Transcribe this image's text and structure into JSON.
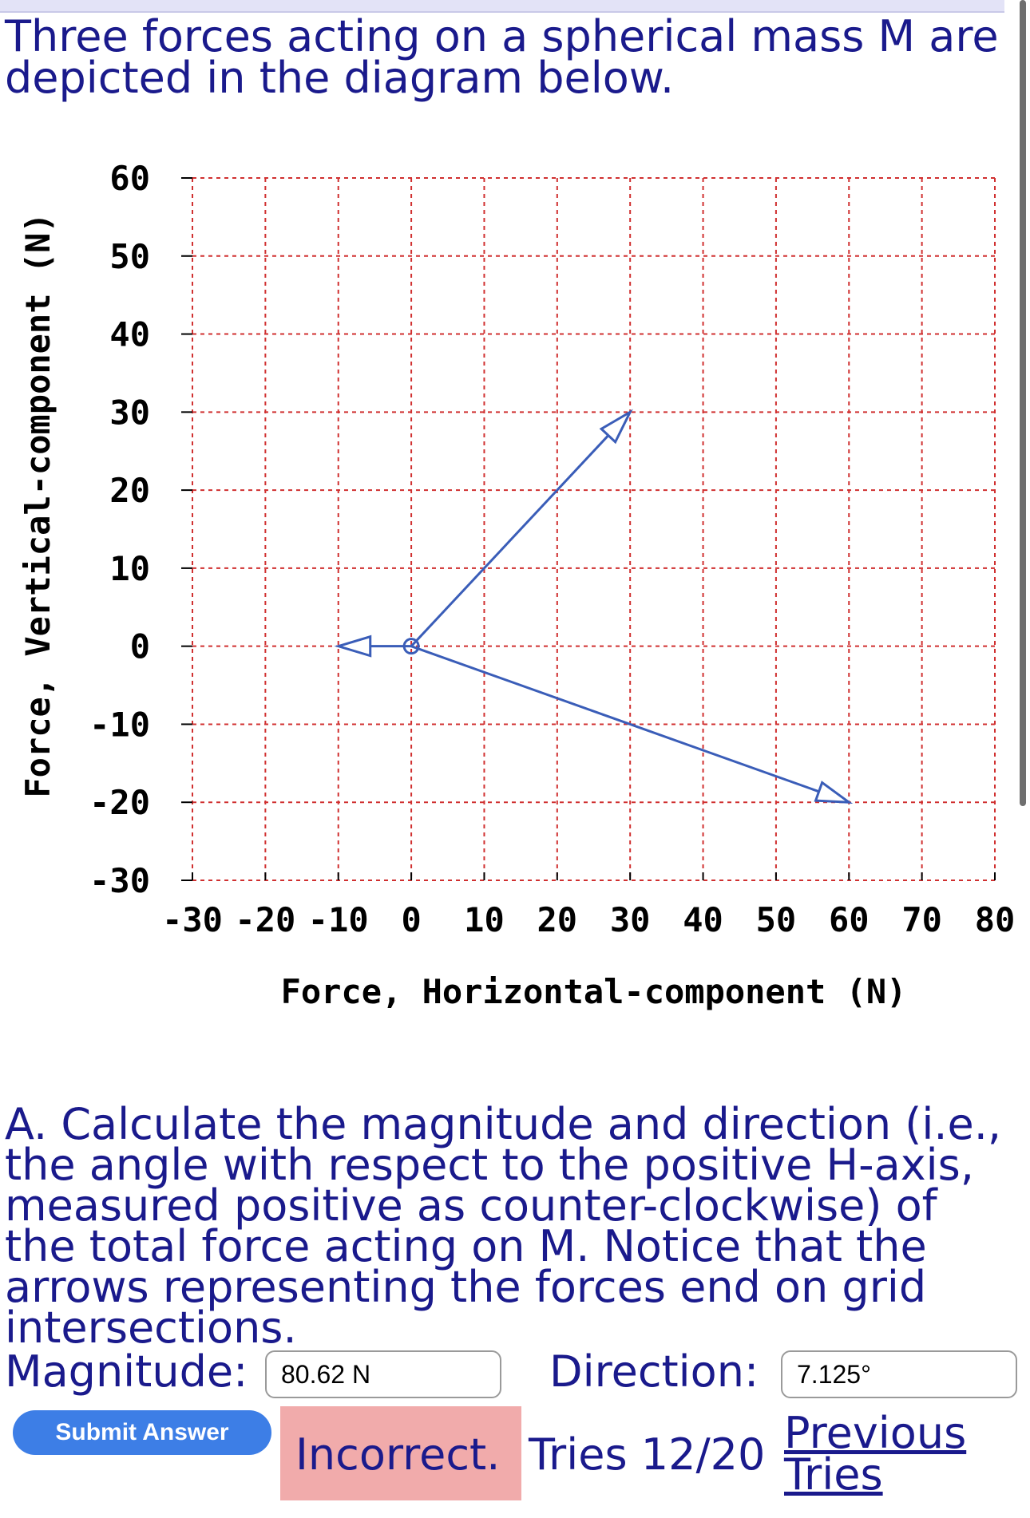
{
  "intro": "Three forces acting on a spherical mass M are depicted in the diagram below.",
  "chart_data": {
    "type": "vector_diagram",
    "xlabel": "Force, Horizontal-component (N)",
    "ylabel": "Force, Vertical-component (N)",
    "xlim": [
      -30,
      80
    ],
    "ylim": [
      -30,
      60
    ],
    "xticks": [
      -30,
      -20,
      -10,
      0,
      10,
      20,
      30,
      40,
      50,
      60,
      70,
      80
    ],
    "yticks": [
      -30,
      -20,
      -10,
      0,
      10,
      20,
      30,
      40,
      50,
      60
    ],
    "grid": true,
    "origin": [
      0,
      0
    ],
    "vectors": [
      {
        "x": 30,
        "y": 30
      },
      {
        "x": 60,
        "y": -20
      },
      {
        "x": -10,
        "y": 0
      }
    ],
    "vector_color": "#3a5db8"
  },
  "question": "A. Calculate the magnitude and direction (i.e., the angle with respect to the positive H-axis, measured positive as counter-clockwise) of the total force acting on M. Notice that the arrows representing the forces end on grid intersections.",
  "form": {
    "magnitude_label": "Magnitude:",
    "magnitude_value": "80.62 N",
    "direction_label": "Direction:",
    "direction_value": "7.125°",
    "submit_label": "Submit Answer"
  },
  "status": {
    "result": "Incorrect.",
    "tries": "Tries 12/20",
    "previous_tries": "Previous Tries",
    "incorrect_bg": "#f1abab"
  },
  "colors": {
    "text": "#1a1a8c",
    "button": "#3d7ee6",
    "grid": "#d03030"
  }
}
